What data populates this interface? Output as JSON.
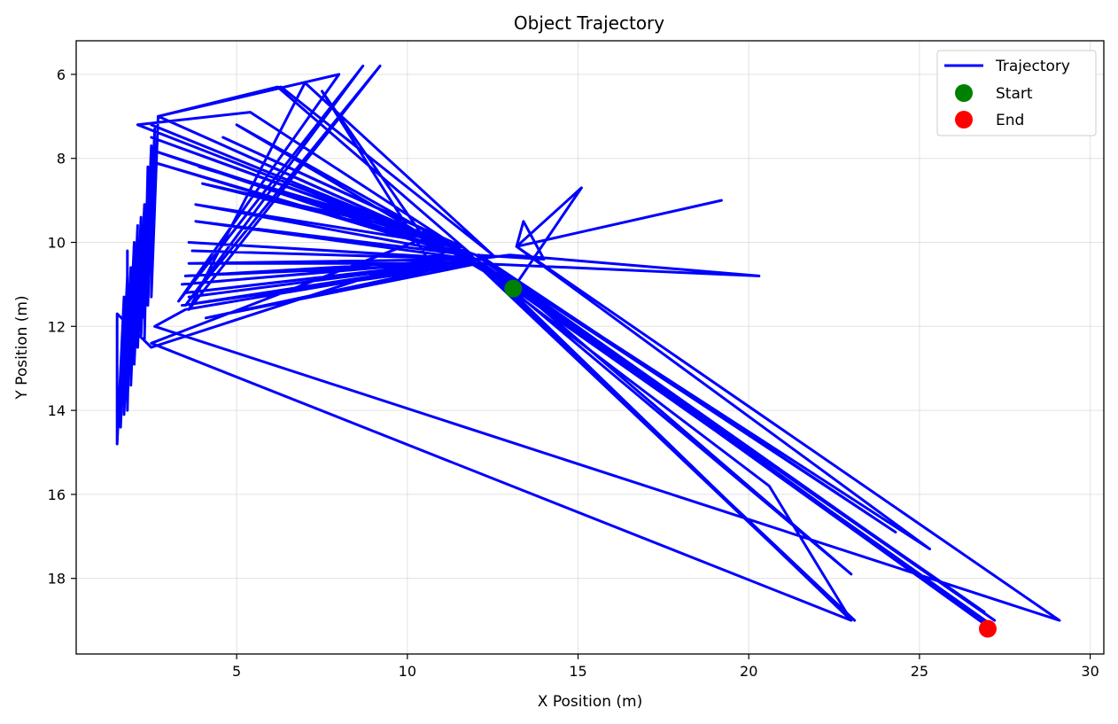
{
  "chart_data": {
    "type": "line",
    "title": "Object Trajectory",
    "xlabel": "X Position (m)",
    "ylabel": "Y Position (m)",
    "xlim": [
      0.3,
      30.4
    ],
    "ylim": [
      19.8,
      5.2
    ],
    "y_inverted": true,
    "xticks": [
      5,
      10,
      15,
      20,
      25,
      30
    ],
    "yticks": [
      6,
      8,
      10,
      12,
      14,
      16,
      18
    ],
    "grid": true,
    "legend_position": "top-right",
    "colors": {
      "trajectory": "#0000ff",
      "start": "#008000",
      "end": "#ff0000"
    },
    "series": [
      {
        "name": "Trajectory",
        "kind": "line",
        "color": "#0000ff",
        "points": [
          [
            13.1,
            11.1
          ],
          [
            15.1,
            8.7
          ],
          [
            13.2,
            10.1
          ],
          [
            19.2,
            9.0
          ],
          [
            13.2,
            10.1
          ],
          [
            13.4,
            9.5
          ],
          [
            14.0,
            10.4
          ],
          [
            12.0,
            10.3
          ],
          [
            27.0,
            19.1
          ],
          [
            12.0,
            10.3
          ],
          [
            27.2,
            19.0
          ],
          [
            12.0,
            10.4
          ],
          [
            26.9,
            18.8
          ],
          [
            12.0,
            10.4
          ],
          [
            22.9,
            18.9
          ],
          [
            12.0,
            10.5
          ],
          [
            23.1,
            19.0
          ],
          [
            12.0,
            10.5
          ],
          [
            20.6,
            15.8
          ],
          [
            23.0,
            19.0
          ],
          [
            12.0,
            10.4
          ],
          [
            23.0,
            17.9
          ],
          [
            12.1,
            10.3
          ],
          [
            24.3,
            16.9
          ],
          [
            12.0,
            10.3
          ],
          [
            25.3,
            17.3
          ],
          [
            13.2,
            10.1
          ],
          [
            29.1,
            19.0
          ],
          [
            2.6,
            12.0
          ],
          [
            3.5,
            11.6
          ],
          [
            12.2,
            10.4
          ],
          [
            3.6,
            11.3
          ],
          [
            12.2,
            10.4
          ],
          [
            4.1,
            11.8
          ],
          [
            12.1,
            10.5
          ],
          [
            3.4,
            11.5
          ],
          [
            12.2,
            10.4
          ],
          [
            3.5,
            11.2
          ],
          [
            12.1,
            10.4
          ],
          [
            3.4,
            11.0
          ],
          [
            12.0,
            10.4
          ],
          [
            3.5,
            10.8
          ],
          [
            12.0,
            10.5
          ],
          [
            3.6,
            10.5
          ],
          [
            12.0,
            10.4
          ],
          [
            3.7,
            10.2
          ],
          [
            12.0,
            10.4
          ],
          [
            3.6,
            10.0
          ],
          [
            11.9,
            10.4
          ],
          [
            3.8,
            9.5
          ],
          [
            11.8,
            10.3
          ],
          [
            3.8,
            9.1
          ],
          [
            11.5,
            10.1
          ],
          [
            4.0,
            8.6
          ],
          [
            10.6,
            9.8
          ],
          [
            3.9,
            8.2
          ],
          [
            11.3,
            10.0
          ],
          [
            4.6,
            7.5
          ],
          [
            11.6,
            10.1
          ],
          [
            2.5,
            12.5
          ],
          [
            1.5,
            11.7
          ],
          [
            1.5,
            14.8
          ],
          [
            1.7,
            11.3
          ],
          [
            1.6,
            14.4
          ],
          [
            1.8,
            10.8
          ],
          [
            1.7,
            14.1
          ],
          [
            1.9,
            10.6
          ],
          [
            1.8,
            14.0
          ],
          [
            1.8,
            10.2
          ],
          [
            1.8,
            13.7
          ],
          [
            2.0,
            10.0
          ],
          [
            1.9,
            13.4
          ],
          [
            2.1,
            9.6
          ],
          [
            2.0,
            12.9
          ],
          [
            2.2,
            9.4
          ],
          [
            2.1,
            12.5
          ],
          [
            2.3,
            9.1
          ],
          [
            2.2,
            12.2
          ],
          [
            2.4,
            8.6
          ],
          [
            2.3,
            12.3
          ],
          [
            2.4,
            8.2
          ],
          [
            2.3,
            11.8
          ],
          [
            2.5,
            7.7
          ],
          [
            2.4,
            11.5
          ],
          [
            2.6,
            7.3
          ],
          [
            2.5,
            11.3
          ],
          [
            2.7,
            7.0
          ],
          [
            11.8,
            10.3
          ],
          [
            2.6,
            8.1
          ],
          [
            12.0,
            10.4
          ],
          [
            2.5,
            7.8
          ],
          [
            12.0,
            10.3
          ],
          [
            2.5,
            7.5
          ],
          [
            11.6,
            10.2
          ],
          [
            2.5,
            7.2
          ],
          [
            11.0,
            10.0
          ],
          [
            2.7,
            7.0
          ],
          [
            8.0,
            6.0
          ],
          [
            3.3,
            11.4
          ],
          [
            8.7,
            5.8
          ],
          [
            3.5,
            11.5
          ],
          [
            9.2,
            5.8
          ],
          [
            3.6,
            11.6
          ],
          [
            7.0,
            6.2
          ],
          [
            12.5,
            10.3
          ],
          [
            6.3,
            6.3
          ],
          [
            2.7,
            7.0
          ],
          [
            6.2,
            6.3
          ],
          [
            11.9,
            10.3
          ],
          [
            2.1,
            7.2
          ],
          [
            5.4,
            6.9
          ],
          [
            12.0,
            10.4
          ],
          [
            5.0,
            7.2
          ],
          [
            13.1,
            11.1
          ],
          [
            27.1,
            19.1
          ],
          [
            12.3,
            10.6
          ],
          [
            12.0,
            10.5
          ],
          [
            20.3,
            10.8
          ],
          [
            13.0,
            10.3
          ],
          [
            12.0,
            10.4
          ],
          [
            10.6,
            10.4
          ],
          [
            7.5,
            6.4
          ],
          [
            10.5,
            9.9
          ],
          [
            2.5,
            12.4
          ],
          [
            23.0,
            19.0
          ],
          [
            12.2,
            10.5
          ],
          [
            27.1,
            19.2
          ]
        ]
      },
      {
        "name": "Start",
        "kind": "marker",
        "color": "#008000",
        "points": [
          [
            13.1,
            11.1
          ]
        ]
      },
      {
        "name": "End",
        "kind": "marker",
        "color": "#ff0000",
        "points": [
          [
            27.0,
            19.2
          ]
        ]
      }
    ]
  }
}
